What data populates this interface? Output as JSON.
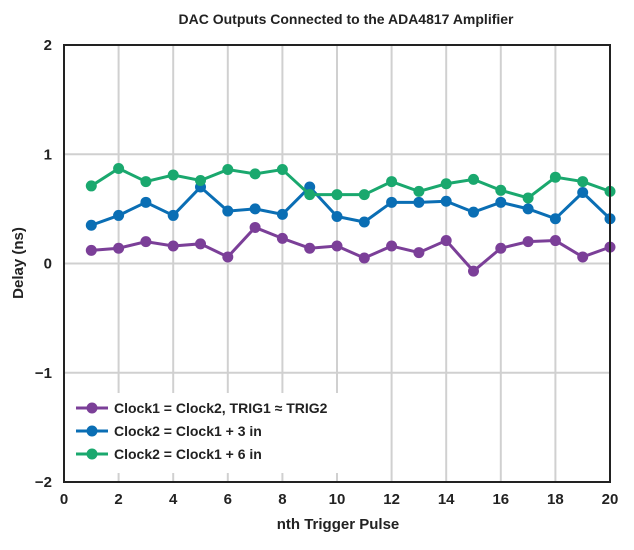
{
  "chart_data": {
    "type": "line",
    "title": "DAC Outputs Connected to the ADA4817 Amplifier",
    "xlabel": "nth Trigger Pulse",
    "ylabel": "Delay (ns)",
    "xlim": [
      0,
      20
    ],
    "ylim": [
      -2,
      2
    ],
    "xticks": [
      0,
      2,
      4,
      6,
      8,
      10,
      12,
      14,
      16,
      18,
      20
    ],
    "yticks": [
      -2,
      -1,
      0,
      1,
      2
    ],
    "grid": true,
    "legend_position": "bottom-left",
    "x": [
      1,
      2,
      3,
      4,
      5,
      6,
      7,
      8,
      9,
      10,
      11,
      12,
      13,
      14,
      15,
      16,
      17,
      18,
      19,
      20
    ],
    "series": [
      {
        "name": "Clock1 = Clock2, TRIG1 ≈ TRIG2",
        "color": "#7b3f98",
        "values": [
          0.12,
          0.14,
          0.2,
          0.16,
          0.18,
          0.06,
          0.33,
          0.23,
          0.14,
          0.16,
          0.05,
          0.16,
          0.1,
          0.21,
          -0.07,
          0.14,
          0.2,
          0.21,
          0.06,
          0.15
        ]
      },
      {
        "name": "Clock2 = Clock1 + 3 in",
        "color": "#0a6eb4",
        "values": [
          0.35,
          0.44,
          0.56,
          0.44,
          0.7,
          0.48,
          0.5,
          0.45,
          0.7,
          0.43,
          0.38,
          0.56,
          0.56,
          0.57,
          0.47,
          0.56,
          0.5,
          0.41,
          0.65,
          0.41
        ]
      },
      {
        "name": "Clock2 = Clock1 + 6 in",
        "color": "#1aa86e",
        "values": [
          0.71,
          0.87,
          0.75,
          0.81,
          0.76,
          0.86,
          0.82,
          0.86,
          0.63,
          0.63,
          0.63,
          0.75,
          0.66,
          0.73,
          0.77,
          0.67,
          0.6,
          0.79,
          0.75,
          0.66
        ]
      }
    ]
  }
}
